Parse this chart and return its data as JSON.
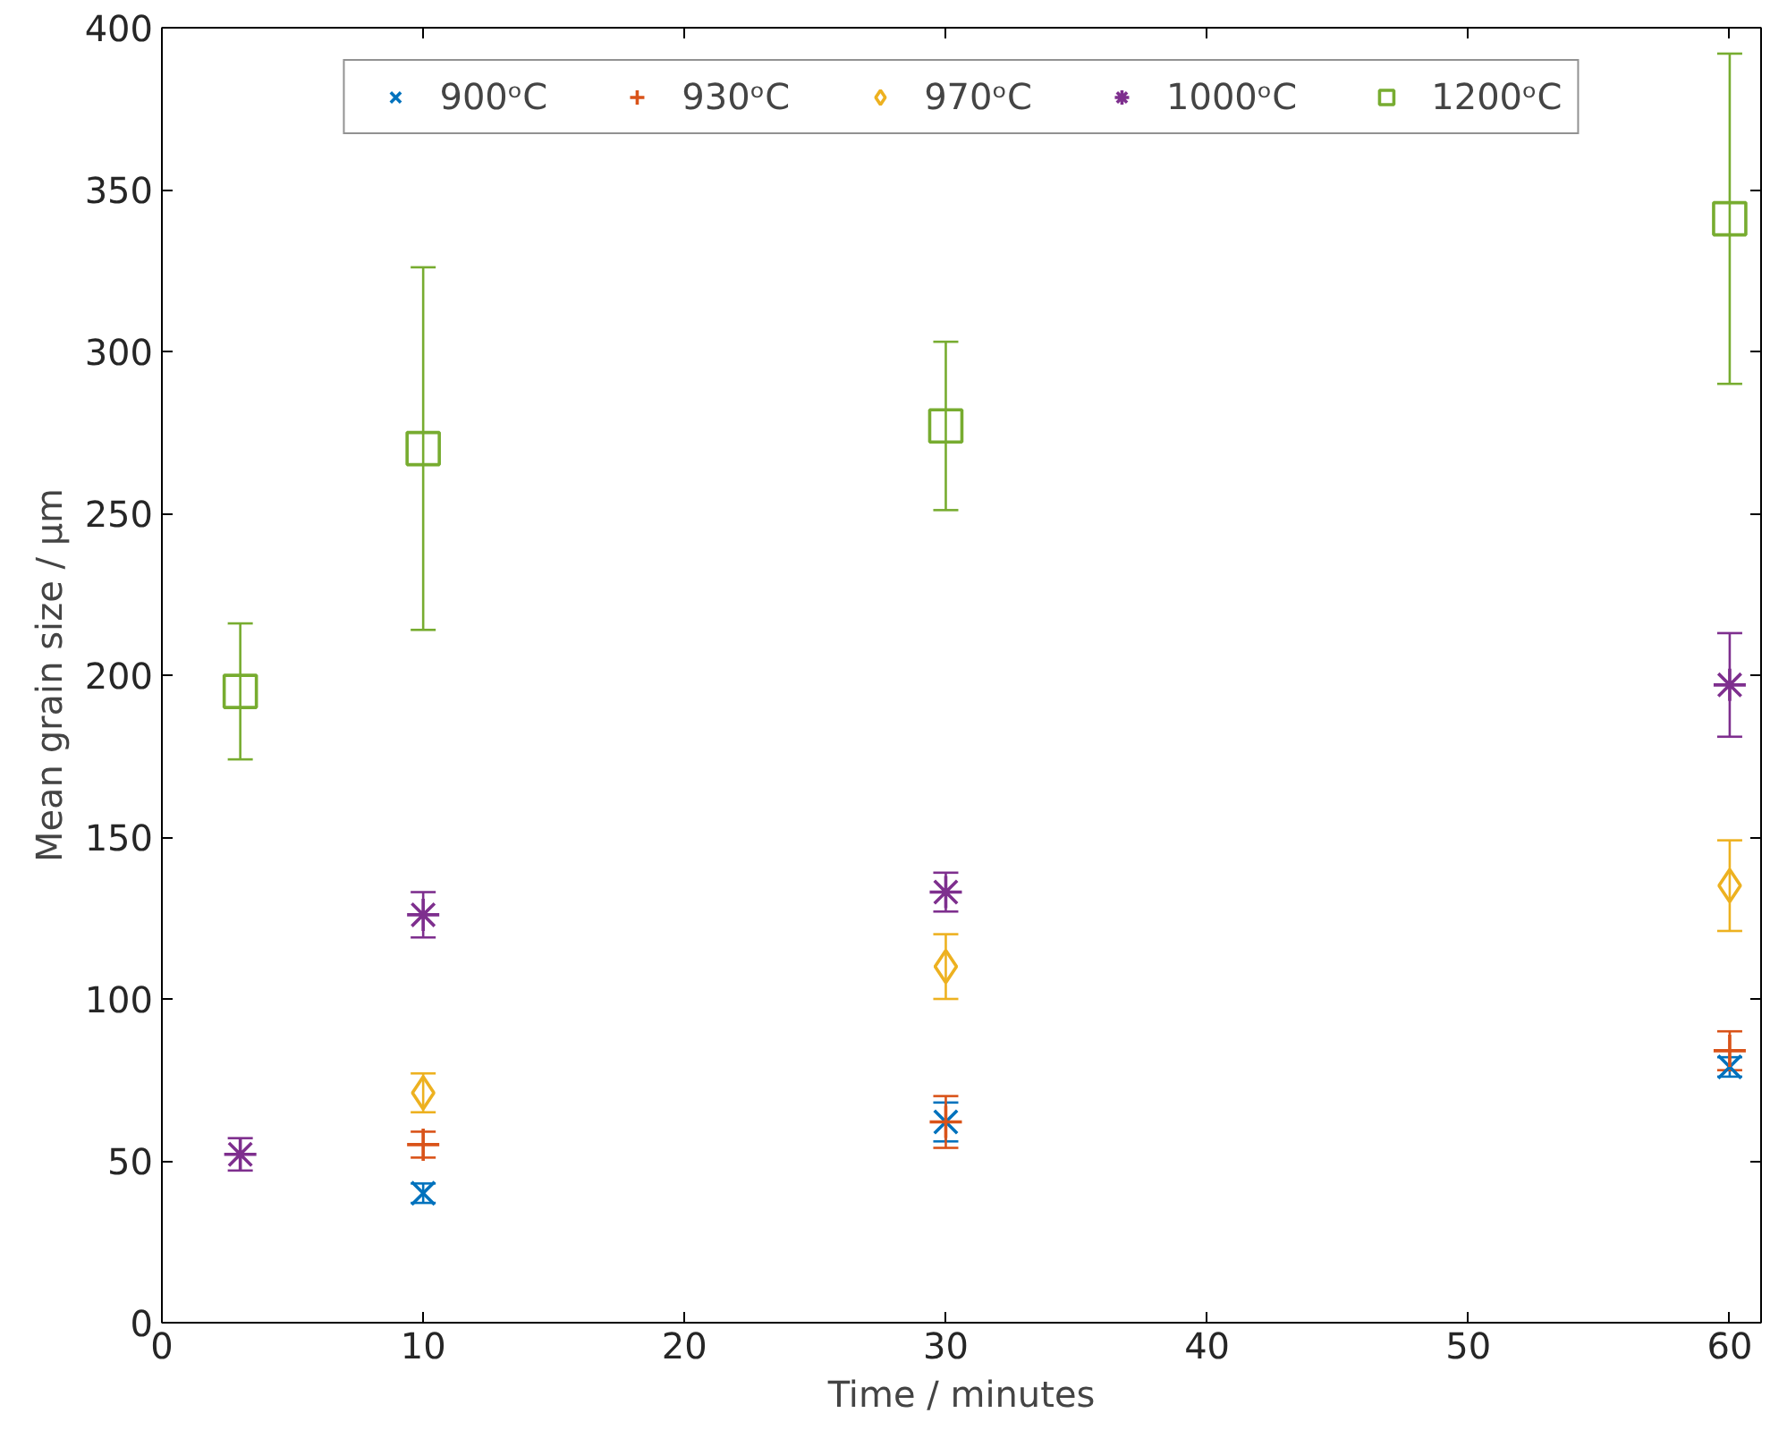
{
  "chart_data": {
    "type": "scatter",
    "xlabel": "Time / minutes",
    "ylabel": "Mean grain size / μm",
    "xlim": [
      0,
      61.2
    ],
    "ylim": [
      0,
      400
    ],
    "xticks": [
      0,
      10,
      20,
      30,
      40,
      50,
      60
    ],
    "yticks": [
      0,
      50,
      100,
      150,
      200,
      250,
      300,
      350,
      400
    ],
    "grid": false,
    "legend": "top",
    "series": [
      {
        "name": "900ᵒC",
        "color": "#0072bd",
        "marker": "x",
        "x": [
          10,
          30,
          60
        ],
        "values": [
          40,
          62,
          79
        ],
        "errors": [
          3,
          6,
          3
        ]
      },
      {
        "name": "930ᵒC",
        "color": "#d95319",
        "marker": "cross",
        "x": [
          10,
          30,
          60
        ],
        "values": [
          55,
          62,
          84
        ],
        "errors": [
          4,
          8,
          6
        ]
      },
      {
        "name": "970ᵒC",
        "color": "#edb120",
        "marker": "diamond",
        "x": [
          10,
          30,
          60
        ],
        "values": [
          71,
          110,
          135
        ],
        "errors": [
          6,
          10,
          14
        ]
      },
      {
        "name": "1000ᵒC",
        "color": "#7e2f8e",
        "marker": "cross",
        "x": [
          3,
          10,
          30,
          60
        ],
        "values": [
          52,
          126,
          133,
          197
        ],
        "errors": [
          5,
          7,
          6,
          16
        ]
      },
      {
        "name": "1200ᵒC",
        "color": "#77ac30",
        "marker": "square",
        "x": [
          3,
          10,
          30,
          60
        ],
        "values": [
          195,
          270,
          277,
          341
        ],
        "errors": [
          21,
          56,
          26,
          51
        ]
      }
    ]
  }
}
